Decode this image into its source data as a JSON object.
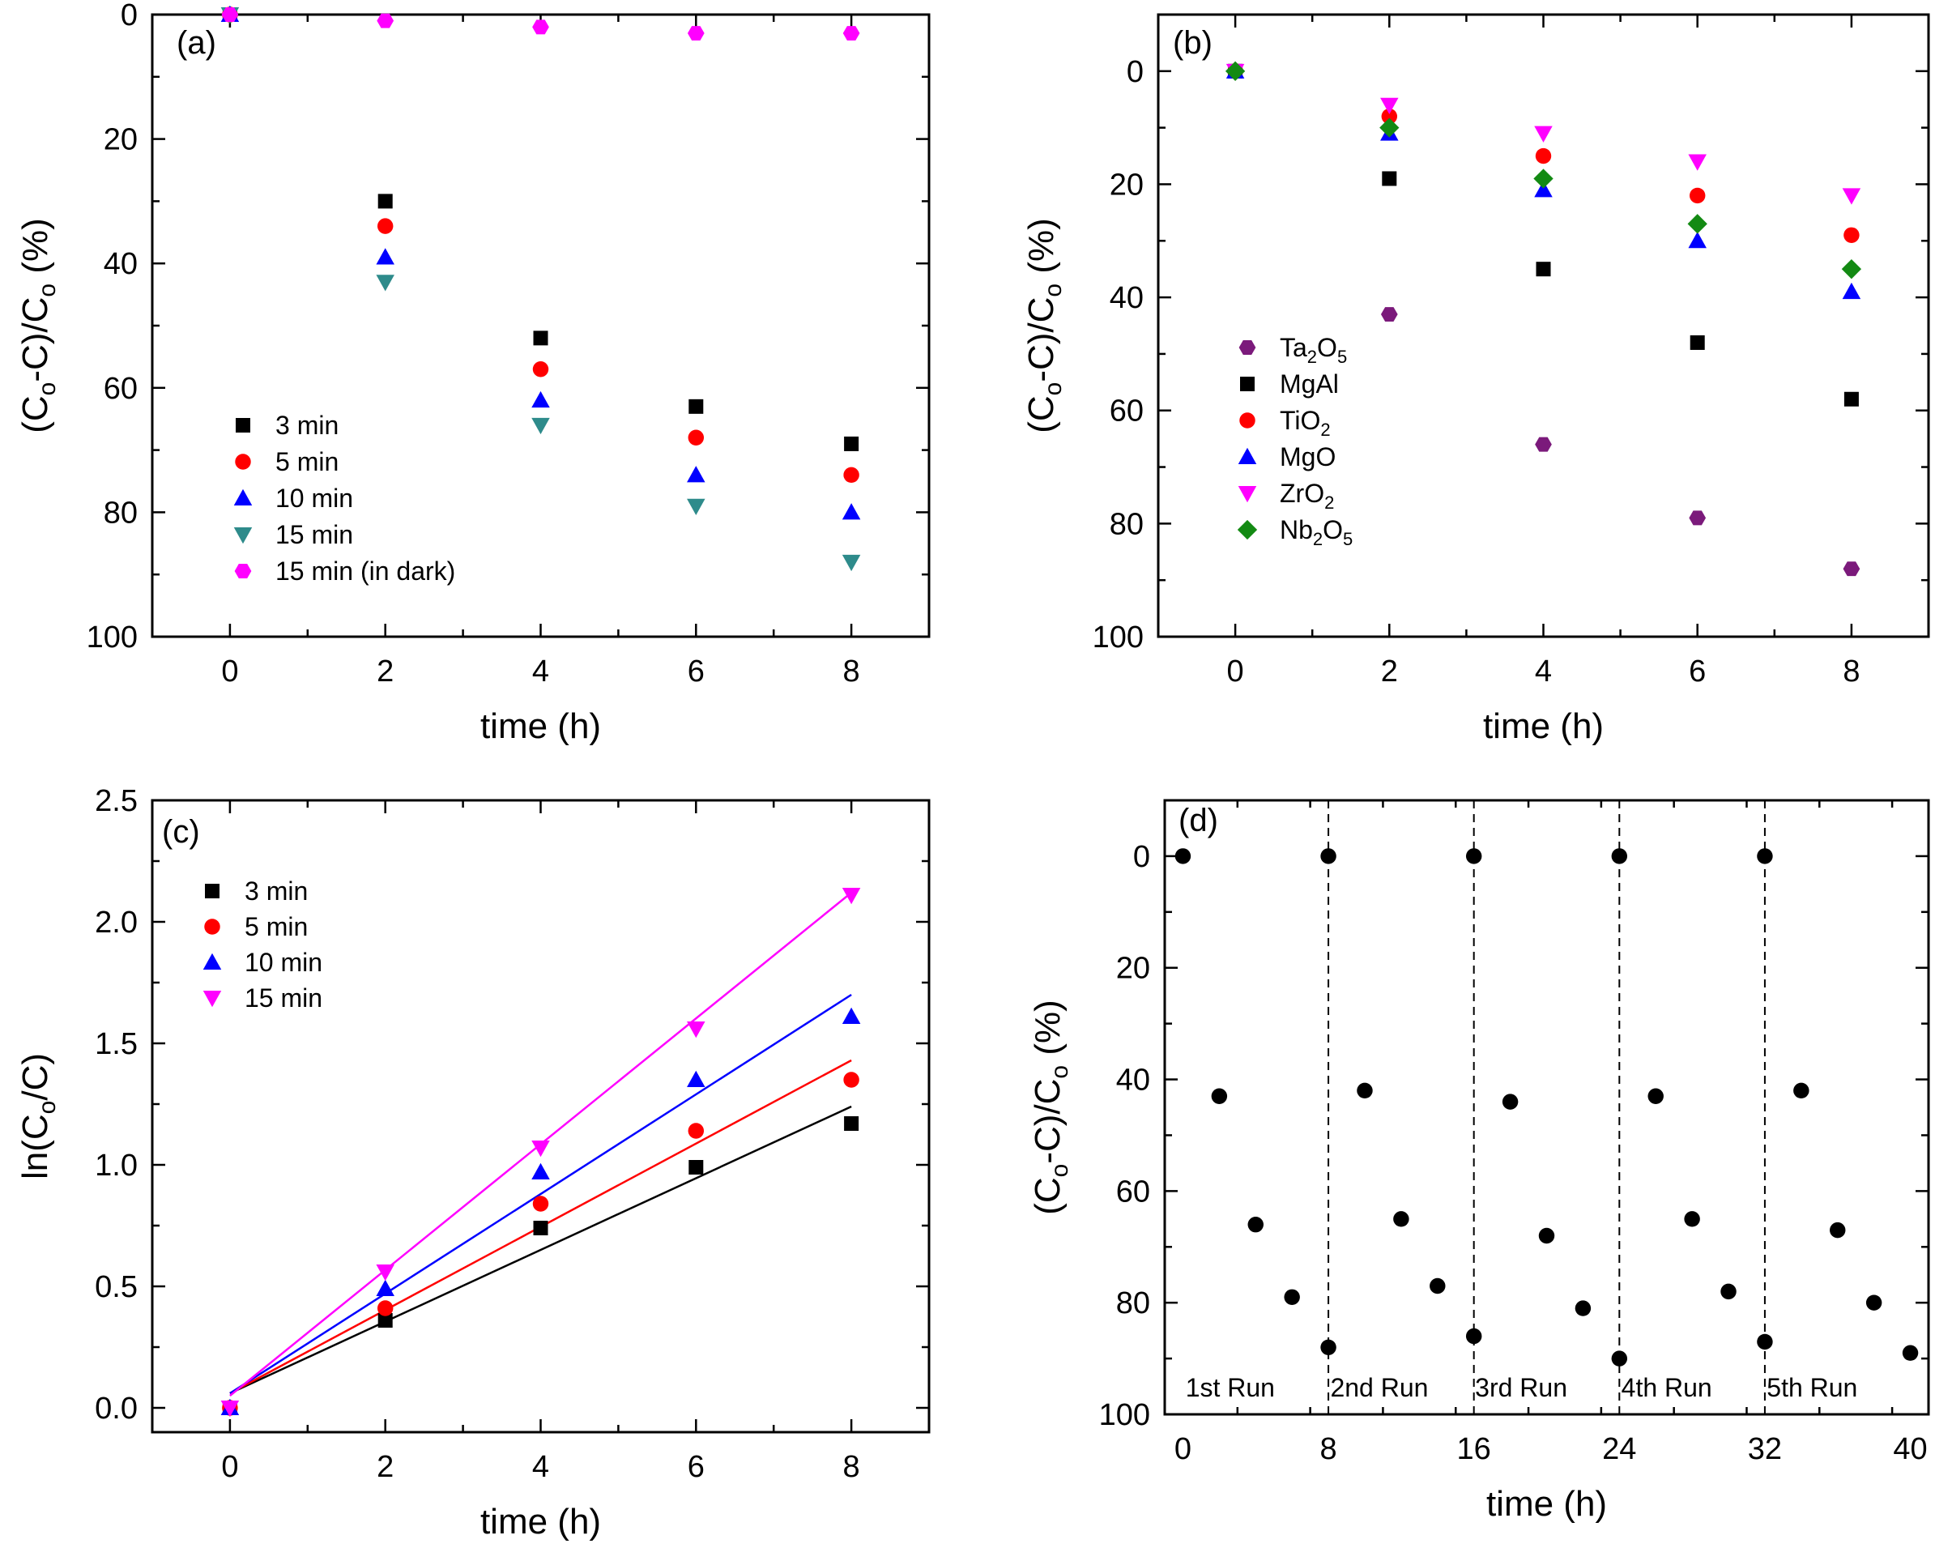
{
  "colors": {
    "black": "#000000",
    "red": "#ff0000",
    "blue": "#0000ff",
    "teal": "#2e8b8b",
    "magenta": "#ff00ff",
    "purple": "#7b1a7b",
    "green": "#138a13"
  },
  "chart_data": [
    {
      "panel": "(a)",
      "type": "scatter",
      "xlabel": "time (h)",
      "ylabel": "(Co-C)/Co (%)",
      "xlim": [
        -1,
        9
      ],
      "ylim": [
        0,
        100
      ],
      "y_inverted": true,
      "xticks": [
        0,
        2,
        4,
        6,
        8
      ],
      "yticks": [
        0,
        20,
        40,
        60,
        80,
        100
      ],
      "legend_position": "lower-left",
      "series": [
        {
          "name": "3 min",
          "marker": "square",
          "color": "black",
          "x": [
            0,
            2,
            4,
            6,
            8
          ],
          "values": [
            0,
            30,
            52,
            63,
            69
          ]
        },
        {
          "name": "5 min",
          "marker": "circle",
          "color": "red",
          "x": [
            0,
            2,
            4,
            6,
            8
          ],
          "values": [
            0,
            34,
            57,
            68,
            74
          ]
        },
        {
          "name": "10 min",
          "marker": "triangle-up",
          "color": "blue",
          "x": [
            0,
            2,
            4,
            6,
            8
          ],
          "values": [
            0,
            39,
            62,
            74,
            80
          ]
        },
        {
          "name": "15 min",
          "marker": "triangle-down",
          "color": "teal",
          "x": [
            0,
            2,
            4,
            6,
            8
          ],
          "values": [
            0,
            43,
            66,
            79,
            88
          ]
        },
        {
          "name": "15 min (in dark)",
          "marker": "hexagon",
          "color": "magenta",
          "x": [
            0,
            2,
            4,
            6,
            8
          ],
          "values": [
            0,
            1,
            2,
            3,
            3
          ]
        }
      ]
    },
    {
      "panel": "(b)",
      "type": "scatter",
      "xlabel": "time (h)",
      "ylabel": "(Co-C)/Co (%)",
      "xlim": [
        -1,
        9
      ],
      "ylim": [
        -10,
        100
      ],
      "y_inverted": true,
      "xticks": [
        0,
        2,
        4,
        6,
        8
      ],
      "yticks": [
        0,
        20,
        40,
        60,
        80,
        100
      ],
      "legend_position": "center-left",
      "series": [
        {
          "name": "Ta2O5",
          "label_main": "Ta",
          "label_parts": [
            [
              "Ta",
              ""
            ],
            [
              "2",
              "sub"
            ],
            [
              "O",
              ""
            ],
            [
              "5",
              "sub"
            ]
          ],
          "marker": "hexagon",
          "color": "purple",
          "x": [
            0,
            2,
            4,
            6,
            8
          ],
          "values": [
            0,
            43,
            66,
            79,
            88
          ]
        },
        {
          "name": "MgAl",
          "label_parts": [
            [
              "MgAl",
              ""
            ]
          ],
          "marker": "square",
          "color": "black",
          "x": [
            0,
            2,
            4,
            6,
            8
          ],
          "values": [
            0,
            19,
            35,
            48,
            58
          ]
        },
        {
          "name": "TiO2",
          "label_parts": [
            [
              "TiO",
              ""
            ],
            [
              "2",
              "sub"
            ]
          ],
          "marker": "circle",
          "color": "red",
          "x": [
            0,
            2,
            4,
            6,
            8
          ],
          "values": [
            0,
            8,
            15,
            22,
            29
          ]
        },
        {
          "name": "MgO",
          "label_parts": [
            [
              "MgO",
              ""
            ]
          ],
          "marker": "triangle-up",
          "color": "blue",
          "x": [
            0,
            2,
            4,
            6,
            8
          ],
          "values": [
            0,
            11,
            21,
            30,
            39
          ]
        },
        {
          "name": "ZrO2",
          "label_parts": [
            [
              "ZrO",
              ""
            ],
            [
              "2",
              "sub"
            ]
          ],
          "marker": "triangle-down",
          "color": "magenta",
          "x": [
            0,
            2,
            4,
            6,
            8
          ],
          "values": [
            0,
            6,
            11,
            16,
            22
          ]
        },
        {
          "name": "Nb2O5",
          "label_parts": [
            [
              "Nb",
              ""
            ],
            [
              "2",
              "sub"
            ],
            [
              "O",
              ""
            ],
            [
              "5",
              "sub"
            ]
          ],
          "marker": "diamond",
          "color": "green",
          "x": [
            0,
            2,
            4,
            6,
            8
          ],
          "values": [
            0,
            10,
            19,
            27,
            35
          ]
        }
      ]
    },
    {
      "panel": "(c)",
      "type": "scatter",
      "xlabel": "time (h)",
      "ylabel": "ln(Co/C)",
      "xlim": [
        -1,
        9
      ],
      "ylim": [
        -0.1,
        2.5
      ],
      "y_inverted": false,
      "xticks": [
        0,
        2,
        4,
        6,
        8
      ],
      "yticks": [
        0.0,
        0.5,
        1.0,
        1.5,
        2.0,
        2.5
      ],
      "ytick_labels": [
        "0.0",
        "0.5",
        "1.0",
        "1.5",
        "2.0",
        "2.5"
      ],
      "legend_position": "top-left",
      "series": [
        {
          "name": "3 min",
          "marker": "square",
          "color": "black",
          "x": [
            0,
            2,
            4,
            6,
            8
          ],
          "values": [
            0.0,
            0.36,
            0.74,
            0.99,
            1.17
          ],
          "fit": [
            0.06,
            1.24
          ]
        },
        {
          "name": "5 min",
          "marker": "circle",
          "color": "red",
          "x": [
            0,
            2,
            4,
            6,
            8
          ],
          "values": [
            0.0,
            0.41,
            0.84,
            1.14,
            1.35
          ],
          "fit": [
            0.06,
            1.43
          ]
        },
        {
          "name": "10 min",
          "marker": "triangle-up",
          "color": "blue",
          "x": [
            0,
            2,
            4,
            6,
            8
          ],
          "values": [
            0.0,
            0.49,
            0.97,
            1.35,
            1.61
          ],
          "fit": [
            0.06,
            1.7
          ]
        },
        {
          "name": "15 min",
          "marker": "triangle-down",
          "color": "magenta",
          "x": [
            0,
            2,
            4,
            6,
            8
          ],
          "values": [
            0.0,
            0.56,
            1.07,
            1.56,
            2.11
          ],
          "fit": [
            0.05,
            2.12
          ]
        }
      ]
    },
    {
      "panel": "(d)",
      "type": "scatter",
      "xlabel": "time (h)",
      "ylabel": "(Co-C)/Co (%)",
      "xlim": [
        -1,
        41
      ],
      "ylim": [
        -10,
        100
      ],
      "y_inverted": true,
      "xticks": [
        0,
        8,
        16,
        24,
        32,
        40
      ],
      "yticks": [
        0,
        20,
        40,
        60,
        80,
        100
      ],
      "run_boundaries": [
        8,
        16,
        24,
        32
      ],
      "run_labels": [
        {
          "text": "1st Run",
          "x": 2.6
        },
        {
          "text": "2nd Run",
          "x": 10.8
        },
        {
          "text": "3rd Run",
          "x": 18.6
        },
        {
          "text": "4th Run",
          "x": 26.6
        },
        {
          "text": "5th Run",
          "x": 34.6
        }
      ],
      "series": [
        {
          "name": "runs",
          "marker": "circle",
          "color": "black",
          "x": [
            0,
            2,
            4,
            6,
            8,
            8,
            10,
            12,
            14,
            16,
            16,
            18,
            20,
            22,
            24,
            24,
            26,
            28,
            30,
            32,
            32,
            34,
            36,
            38,
            40
          ],
          "values": [
            0,
            43,
            66,
            79,
            88,
            0,
            42,
            65,
            77,
            86,
            0,
            44,
            68,
            81,
            90,
            0,
            43,
            65,
            78,
            87,
            0,
            42,
            67,
            80,
            89
          ]
        }
      ]
    }
  ]
}
